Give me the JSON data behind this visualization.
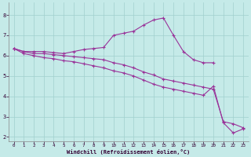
{
  "title": "",
  "xlabel": "Windchill (Refroidissement éolien,°C)",
  "bg_color": "#c5eae8",
  "grid_color": "#a0d0ce",
  "line_color": "#993399",
  "xlim": [
    -0.5,
    23.5
  ],
  "ylim": [
    1.8,
    8.6
  ],
  "yticks": [
    2,
    3,
    4,
    5,
    6,
    7,
    8
  ],
  "xticks": [
    0,
    1,
    2,
    3,
    4,
    5,
    6,
    7,
    8,
    9,
    10,
    11,
    12,
    13,
    14,
    15,
    16,
    17,
    18,
    19,
    20,
    21,
    22,
    23
  ],
  "line1_x": [
    0,
    1,
    2,
    3,
    4,
    5,
    6,
    7,
    8,
    9,
    10,
    11,
    12,
    13,
    14,
    15,
    16,
    17,
    18,
    19,
    20
  ],
  "line1_y": [
    6.35,
    6.2,
    6.2,
    6.2,
    6.15,
    6.1,
    6.2,
    6.3,
    6.35,
    6.4,
    7.0,
    7.1,
    7.2,
    7.5,
    7.75,
    7.85,
    7.0,
    6.2,
    5.8,
    5.65,
    5.65
  ],
  "line2_x": [
    0,
    1,
    2,
    3,
    4,
    5,
    6,
    7,
    8,
    9,
    10,
    11,
    12,
    13,
    14,
    15,
    16,
    17,
    18,
    19,
    20,
    21,
    22,
    23
  ],
  "line2_y": [
    6.35,
    6.2,
    6.1,
    6.1,
    6.05,
    6.0,
    5.95,
    5.9,
    5.85,
    5.8,
    5.65,
    5.55,
    5.4,
    5.2,
    5.05,
    4.85,
    4.75,
    4.65,
    4.55,
    4.45,
    4.35,
    2.75,
    2.65,
    2.45
  ],
  "line3_x": [
    0,
    1,
    2,
    3,
    4,
    5,
    6,
    7,
    8,
    9,
    10,
    11,
    12,
    13,
    14,
    15,
    16,
    17,
    18,
    19,
    20,
    21,
    22,
    23
  ],
  "line3_y": [
    6.35,
    6.1,
    6.0,
    5.9,
    5.85,
    5.75,
    5.7,
    5.6,
    5.5,
    5.4,
    5.25,
    5.15,
    5.0,
    4.8,
    4.6,
    4.45,
    4.35,
    4.25,
    4.15,
    4.05,
    4.5,
    2.7,
    2.2,
    2.4
  ]
}
